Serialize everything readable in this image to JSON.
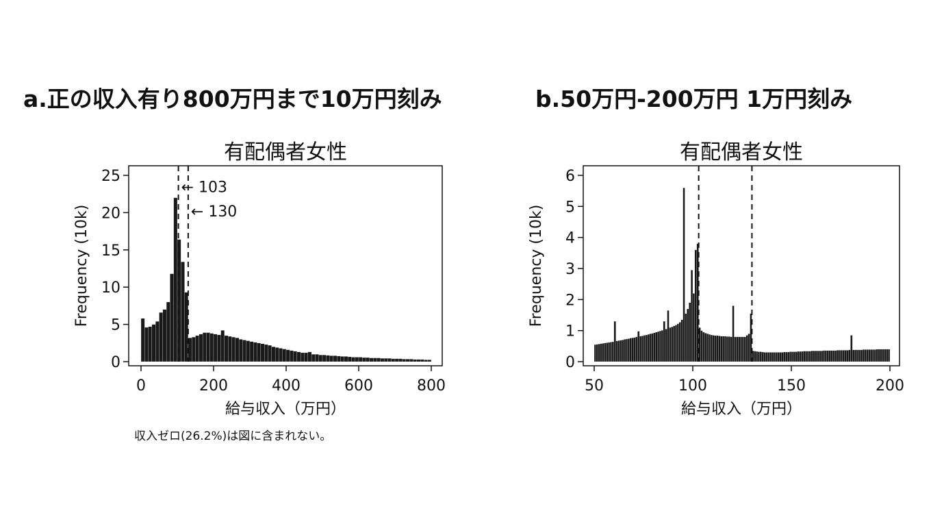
{
  "headings": {
    "a": "a.正の収入有り800万円まで10万円刻み",
    "b": "b.50万円-200万円 1万円刻み"
  },
  "note": "収入ゼロ(26.2%)は図に含まれない。",
  "chart_data": [
    {
      "type": "bar",
      "title": "有配偶者女性",
      "xlabel": "給与収入（万円）",
      "ylabel": "Frequency (10k)",
      "xlim": [
        0,
        800
      ],
      "ylim": [
        0,
        25
      ],
      "xticks": [
        0,
        200,
        400,
        600,
        800
      ],
      "yticks": [
        0,
        5,
        10,
        15,
        20,
        25
      ],
      "bin_width": 10,
      "vlines": [
        103,
        130
      ],
      "annotations": [
        {
          "text": "← 103",
          "x": 103,
          "y": 23.5
        },
        {
          "text": "← 130",
          "x": 130,
          "y": 20.2
        }
      ],
      "bins": [
        0,
        10,
        20,
        30,
        40,
        50,
        60,
        70,
        80,
        90,
        100,
        110,
        120,
        130,
        140,
        150,
        160,
        170,
        180,
        190,
        200,
        210,
        220,
        230,
        240,
        250,
        260,
        270,
        280,
        290,
        300,
        310,
        320,
        330,
        340,
        350,
        360,
        370,
        380,
        390,
        400,
        410,
        420,
        430,
        440,
        450,
        460,
        470,
        480,
        490,
        500,
        510,
        520,
        530,
        540,
        550,
        560,
        570,
        580,
        590,
        600,
        610,
        620,
        630,
        640,
        650,
        660,
        670,
        680,
        690,
        700,
        710,
        720,
        730,
        740,
        750,
        760,
        770,
        780,
        790
      ],
      "values": [
        5.8,
        4.6,
        4.7,
        5.0,
        5.4,
        6.6,
        7.0,
        8.0,
        11.8,
        22.0,
        16.4,
        13.4,
        9.3,
        3.2,
        3.3,
        3.5,
        3.7,
        3.9,
        3.9,
        3.8,
        3.7,
        3.6,
        4.2,
        3.5,
        3.4,
        3.3,
        3.2,
        3.0,
        2.9,
        2.8,
        2.7,
        2.6,
        2.5,
        2.4,
        2.3,
        2.2,
        2.0,
        1.9,
        1.8,
        1.7,
        1.6,
        1.5,
        1.4,
        1.3,
        1.2,
        1.2,
        1.3,
        1.0,
        1.0,
        0.9,
        0.9,
        0.85,
        0.8,
        0.8,
        0.75,
        0.7,
        0.7,
        0.65,
        0.6,
        0.6,
        0.6,
        0.55,
        0.55,
        0.5,
        0.5,
        0.5,
        0.45,
        0.45,
        0.45,
        0.4,
        0.4,
        0.4,
        0.35,
        0.35,
        0.35,
        0.3,
        0.3,
        0.3,
        0.25,
        0.25
      ]
    },
    {
      "type": "bar",
      "title": "有配偶者女性",
      "xlabel": "給与収入（万円）",
      "ylabel": "Frequency (10k)",
      "xlim": [
        50,
        200
      ],
      "ylim": [
        0,
        6
      ],
      "xticks": [
        50,
        100,
        150,
        200
      ],
      "yticks": [
        0,
        1,
        2,
        3,
        4,
        5,
        6
      ],
      "bin_width": 1,
      "vlines": [
        103,
        130
      ],
      "bins": [
        50,
        51,
        52,
        53,
        54,
        55,
        56,
        57,
        58,
        59,
        60,
        61,
        62,
        63,
        64,
        65,
        66,
        67,
        68,
        69,
        70,
        71,
        72,
        73,
        74,
        75,
        76,
        77,
        78,
        79,
        80,
        81,
        82,
        83,
        84,
        85,
        86,
        87,
        88,
        89,
        90,
        91,
        92,
        93,
        94,
        95,
        96,
        97,
        98,
        99,
        100,
        101,
        102,
        103,
        104,
        105,
        106,
        107,
        108,
        109,
        110,
        111,
        112,
        113,
        114,
        115,
        116,
        117,
        118,
        119,
        120,
        121,
        122,
        123,
        124,
        125,
        126,
        127,
        128,
        129,
        130,
        131,
        132,
        133,
        134,
        135,
        136,
        137,
        138,
        139,
        140,
        141,
        142,
        143,
        144,
        145,
        146,
        147,
        148,
        149,
        150,
        151,
        152,
        153,
        154,
        155,
        156,
        157,
        158,
        159,
        160,
        161,
        162,
        163,
        164,
        165,
        166,
        167,
        168,
        169,
        170,
        171,
        172,
        173,
        174,
        175,
        176,
        177,
        178,
        179,
        180,
        181,
        182,
        183,
        184,
        185,
        186,
        187,
        188,
        189,
        190,
        191,
        192,
        193,
        194,
        195,
        196,
        197,
        198,
        199
      ],
      "values": [
        0.55,
        0.56,
        0.57,
        0.58,
        0.59,
        0.6,
        0.61,
        0.62,
        0.63,
        0.64,
        1.3,
        0.67,
        0.68,
        0.69,
        0.7,
        0.72,
        0.73,
        0.74,
        0.76,
        0.77,
        0.78,
        0.8,
        0.98,
        0.82,
        0.83,
        0.85,
        0.86,
        0.88,
        0.9,
        0.91,
        0.93,
        0.95,
        0.97,
        0.99,
        1.01,
        1.3,
        1.05,
        1.65,
        1.1,
        1.12,
        1.15,
        1.18,
        1.22,
        1.27,
        1.35,
        5.6,
        1.55,
        1.7,
        1.9,
        2.95,
        2.2,
        3.6,
        3.8,
        1.1,
        1.0,
        0.95,
        0.92,
        0.9,
        0.88,
        0.86,
        0.85,
        0.84,
        0.84,
        0.83,
        0.82,
        0.82,
        0.82,
        0.81,
        0.81,
        0.8,
        1.8,
        0.8,
        0.8,
        0.8,
        0.8,
        0.8,
        0.8,
        0.85,
        0.9,
        1.55,
        0.35,
        0.34,
        0.33,
        0.32,
        0.32,
        0.31,
        0.3,
        0.3,
        0.3,
        0.3,
        0.3,
        0.3,
        0.3,
        0.3,
        0.3,
        0.3,
        0.31,
        0.31,
        0.31,
        0.32,
        0.32,
        0.32,
        0.32,
        0.33,
        0.33,
        0.33,
        0.34,
        0.34,
        0.34,
        0.34,
        0.35,
        0.35,
        0.35,
        0.35,
        0.35,
        0.35,
        0.36,
        0.36,
        0.36,
        0.36,
        0.36,
        0.36,
        0.36,
        0.37,
        0.37,
        0.37,
        0.37,
        0.37,
        0.37,
        0.38,
        0.85,
        0.38,
        0.38,
        0.38,
        0.38,
        0.38,
        0.39,
        0.39,
        0.39,
        0.39,
        0.39,
        0.39,
        0.39,
        0.4,
        0.4,
        0.4,
        0.4,
        0.4,
        0.4,
        0.4
      ]
    }
  ]
}
